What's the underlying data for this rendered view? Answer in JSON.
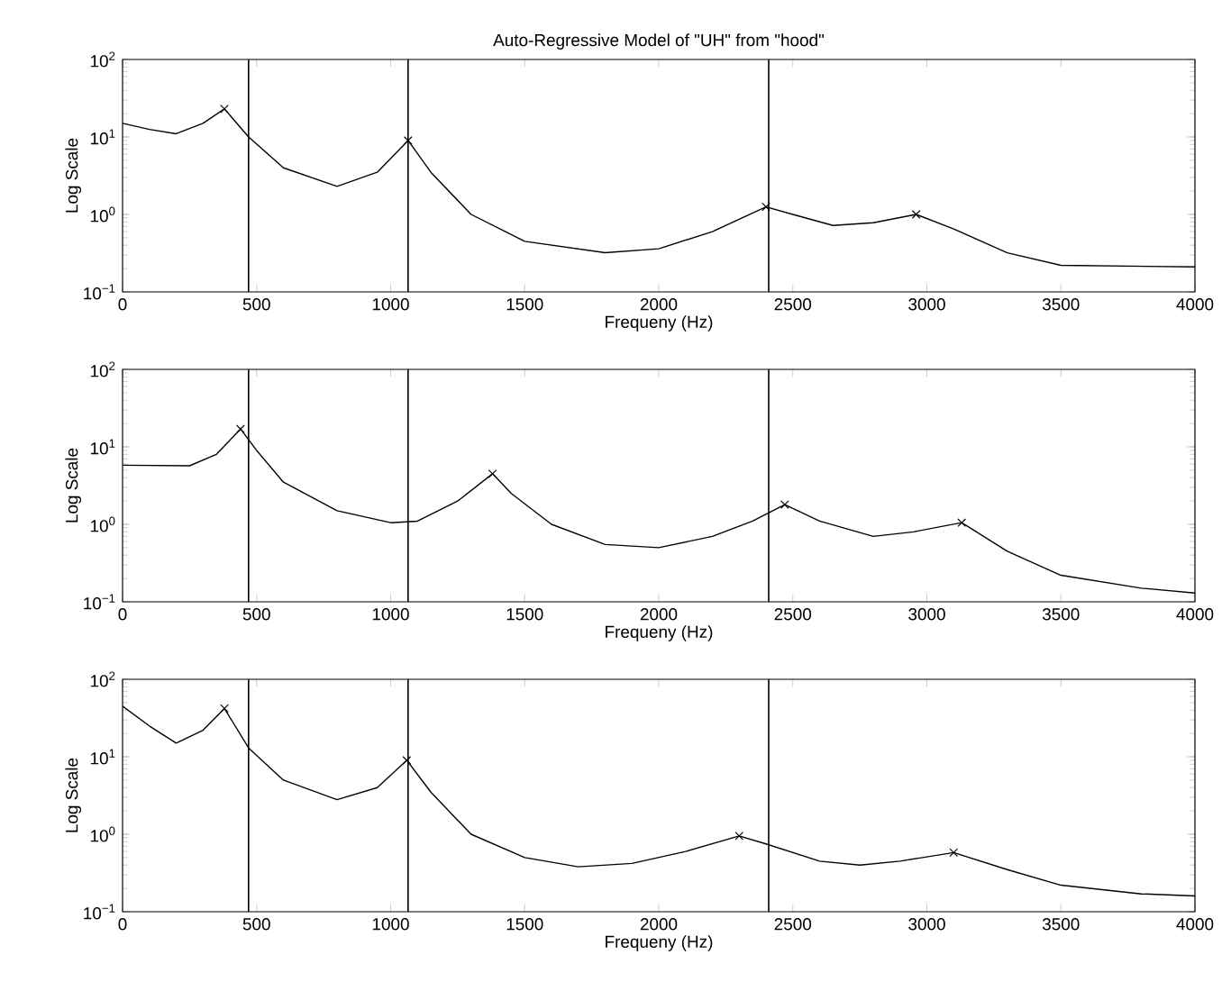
{
  "chart_data": [
    {
      "type": "line",
      "title": "Auto-Regressive Model of \"UH\" from \"hood\"",
      "xlabel": "Frequeny (Hz)",
      "ylabel": "Log Scale",
      "log": "y",
      "xlim": [
        0,
        4000
      ],
      "ylim": [
        0.1,
        100
      ],
      "xticks": [
        0,
        500,
        1000,
        1500,
        2000,
        2500,
        3000,
        3500,
        4000
      ],
      "yticks": [
        {
          "value": 0.1,
          "label": "10$^{−1}$"
        },
        {
          "value": 1,
          "label": "10$^{0}$"
        },
        {
          "value": 10,
          "label": "10$^{1}$"
        },
        {
          "value": 100,
          "label": "10$^{2}$"
        }
      ],
      "ref_lines": [
        {
          "axis": "x",
          "value": 470,
          "color": "#000000"
        },
        {
          "axis": "x",
          "value": 1065,
          "color": "#000000"
        },
        {
          "axis": "x",
          "value": 2410,
          "color": "#000000"
        }
      ],
      "series": [
        {
          "color": "#000000",
          "marker": "none",
          "x": [
            0,
            100,
            200,
            300,
            380,
            470,
            600,
            800,
            950,
            1065,
            1150,
            1300,
            1500,
            1800,
            2000,
            2200,
            2400,
            2500,
            2650,
            2800,
            2960,
            3100,
            3300,
            3500,
            4000
          ],
          "values": [
            15,
            12.5,
            11,
            15,
            23,
            10,
            4,
            2.3,
            3.5,
            9,
            3.5,
            1,
            0.45,
            0.32,
            0.36,
            0.6,
            1.25,
            1.0,
            0.72,
            0.78,
            1.0,
            0.65,
            0.32,
            0.22,
            0.21
          ]
        },
        {
          "type": "scatter",
          "color": "#000000",
          "marker": "cross",
          "x": [
            380,
            1065,
            2400,
            2960
          ],
          "values": [
            23,
            9,
            1.25,
            1.0
          ]
        }
      ]
    },
    {
      "type": "line",
      "xlabel": "Frequeny (Hz)",
      "ylabel": "Log Scale",
      "log": "y",
      "xlim": [
        0,
        4000
      ],
      "ylim": [
        0.1,
        100
      ],
      "xticks": [
        0,
        500,
        1000,
        1500,
        2000,
        2500,
        3000,
        3500,
        4000
      ],
      "yticks": [
        {
          "value": 0.1,
          "label": "10$^{−1}$"
        },
        {
          "value": 1,
          "label": "10$^{0}$"
        },
        {
          "value": 10,
          "label": "10$^{1}$"
        },
        {
          "value": 100,
          "label": "10$^{2}$"
        }
      ],
      "ref_lines": [
        {
          "axis": "x",
          "value": 470,
          "color": "#000000"
        },
        {
          "axis": "x",
          "value": 1065,
          "color": "#000000"
        },
        {
          "axis": "x",
          "value": 2410,
          "color": "#000000"
        }
      ],
      "series": [
        {
          "color": "#000000",
          "marker": "none",
          "x": [
            0,
            250,
            350,
            440,
            500,
            600,
            800,
            1000,
            1100,
            1250,
            1380,
            1450,
            1600,
            1800,
            2000,
            2200,
            2350,
            2470,
            2600,
            2800,
            2950,
            3130,
            3300,
            3500,
            3800,
            4000
          ],
          "values": [
            5.8,
            5.7,
            8,
            17,
            9,
            3.5,
            1.5,
            1.05,
            1.1,
            2,
            4.5,
            2.5,
            1.0,
            0.55,
            0.5,
            0.7,
            1.1,
            1.8,
            1.1,
            0.7,
            0.8,
            1.05,
            0.45,
            0.22,
            0.15,
            0.13
          ]
        },
        {
          "type": "scatter",
          "color": "#000000",
          "marker": "cross",
          "x": [
            440,
            1380,
            2470,
            3130
          ],
          "values": [
            17,
            4.5,
            1.8,
            1.05
          ]
        }
      ]
    },
    {
      "type": "line",
      "xlabel": "Frequeny (Hz)",
      "ylabel": "Log Scale",
      "log": "y",
      "xlim": [
        0,
        4000
      ],
      "ylim": [
        0.1,
        100
      ],
      "xticks": [
        0,
        500,
        1000,
        1500,
        2000,
        2500,
        3000,
        3500,
        4000
      ],
      "yticks": [
        {
          "value": 0.1,
          "label": "10$^{−1}$"
        },
        {
          "value": 1,
          "label": "10$^{0}$"
        },
        {
          "value": 10,
          "label": "10$^{1}$"
        },
        {
          "value": 100,
          "label": "10$^{2}$"
        }
      ],
      "ref_lines": [
        {
          "axis": "x",
          "value": 470,
          "color": "#000000"
        },
        {
          "axis": "x",
          "value": 1065,
          "color": "#000000"
        },
        {
          "axis": "x",
          "value": 2410,
          "color": "#000000"
        }
      ],
      "series": [
        {
          "color": "#000000",
          "marker": "none",
          "x": [
            0,
            100,
            200,
            300,
            380,
            470,
            600,
            800,
            950,
            1060,
            1150,
            1300,
            1500,
            1700,
            1900,
            2100,
            2300,
            2400,
            2600,
            2750,
            2900,
            3100,
            3300,
            3500,
            3800,
            4000
          ],
          "values": [
            45,
            25,
            15,
            22,
            42,
            13,
            5,
            2.8,
            4,
            9,
            3.5,
            1,
            0.5,
            0.38,
            0.42,
            0.6,
            0.95,
            0.75,
            0.45,
            0.4,
            0.45,
            0.58,
            0.35,
            0.22,
            0.17,
            0.16
          ]
        },
        {
          "type": "scatter",
          "color": "#000000",
          "marker": "cross",
          "x": [
            380,
            1060,
            2300,
            3100
          ],
          "values": [
            42,
            9,
            0.95,
            0.58
          ]
        }
      ]
    }
  ]
}
